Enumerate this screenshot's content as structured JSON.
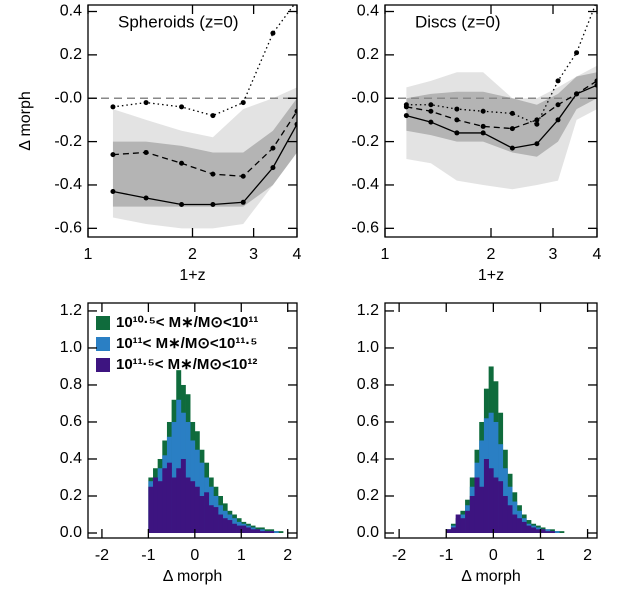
{
  "chart_data": [
    {
      "type": "line",
      "annotation": "Spheroids (z=0)",
      "xlabel": "1+z",
      "ylabel": "Δ morph",
      "xscale": "log",
      "xlim": [
        1,
        4
      ],
      "xticks": [
        1,
        2,
        3,
        4
      ],
      "ylim": [
        -0.64,
        0.43
      ],
      "yticks": [
        0.4,
        0.2,
        {
          "value": 0,
          "label": "-0.0"
        },
        -0.2,
        -0.4,
        -0.6
      ],
      "hline": 0,
      "x": [
        1.18,
        1.47,
        1.86,
        2.29,
        2.8,
        3.41,
        4.0
      ],
      "bands": [
        {
          "color": "#e3e3e3",
          "lower": [
            -0.55,
            -0.58,
            -0.6,
            -0.6,
            -0.58,
            -0.4,
            -0.2
          ],
          "upper": [
            -0.05,
            -0.1,
            -0.15,
            -0.18,
            -0.05,
            0.0,
            0.05
          ]
        },
        {
          "color": "#b4b4b4",
          "lower": [
            -0.5,
            -0.5,
            -0.5,
            -0.5,
            -0.5,
            -0.4,
            -0.25
          ],
          "upper": [
            -0.2,
            -0.2,
            -0.22,
            -0.25,
            -0.25,
            -0.15,
            0.0
          ]
        }
      ],
      "series": [
        {
          "color": "#000000",
          "linestyle": "solid",
          "values": [
            -0.43,
            -0.46,
            -0.49,
            -0.49,
            -0.48,
            -0.32,
            -0.12
          ]
        },
        {
          "color": "#000000",
          "linestyle": "dashed",
          "values": [
            -0.26,
            -0.25,
            -0.3,
            -0.35,
            -0.36,
            -0.23,
            -0.06
          ]
        },
        {
          "color": "#000000",
          "linestyle": "dotted",
          "values": [
            -0.04,
            -0.02,
            -0.04,
            -0.08,
            -0.02,
            0.3,
            0.45
          ]
        }
      ]
    },
    {
      "type": "line",
      "annotation": "Discs (z=0)",
      "xlabel": "1+z",
      "xscale": "log",
      "xlim": [
        1,
        4
      ],
      "xticks": [
        1,
        2,
        3,
        4
      ],
      "ylim": [
        -0.64,
        0.43
      ],
      "yticks": [
        0.4,
        0.2,
        {
          "value": 0,
          "label": "-0.0"
        },
        -0.2,
        -0.4,
        -0.6
      ],
      "hline": 0,
      "x": [
        1.15,
        1.35,
        1.6,
        1.9,
        2.3,
        2.7,
        3.1,
        3.5,
        4.0
      ],
      "bands": [
        {
          "color": "#e3e3e3",
          "lower": [
            -0.28,
            -0.3,
            -0.38,
            -0.4,
            -0.42,
            -0.4,
            -0.38,
            -0.1,
            -0.05
          ],
          "upper": [
            0.05,
            0.08,
            0.12,
            0.12,
            0.0,
            0.0,
            0.05,
            0.1,
            0.15
          ]
        },
        {
          "color": "#b4b4b4",
          "lower": [
            -0.15,
            -0.17,
            -0.2,
            -0.2,
            -0.25,
            -0.27,
            -0.2,
            -0.05,
            0.0
          ],
          "upper": [
            0.0,
            0.02,
            0.03,
            0.03,
            0.0,
            -0.03,
            0.02,
            0.1,
            0.12
          ]
        }
      ],
      "series": [
        {
          "color": "#000000",
          "linestyle": "solid",
          "values": [
            -0.08,
            -0.11,
            -0.16,
            -0.16,
            -0.23,
            -0.21,
            -0.1,
            0.02,
            0.06
          ]
        },
        {
          "color": "#000000",
          "linestyle": "dashed",
          "values": [
            -0.04,
            -0.06,
            -0.1,
            -0.13,
            -0.14,
            -0.1,
            -0.03,
            0.02,
            0.08
          ]
        },
        {
          "color": "#000000",
          "linestyle": "dotted",
          "values": [
            -0.03,
            -0.03,
            -0.05,
            -0.06,
            -0.07,
            -0.12,
            0.08,
            0.21,
            0.45
          ]
        }
      ]
    },
    {
      "type": "histogram",
      "xlabel": "Δ morph",
      "legend": "upper left",
      "xlim": [
        -2.3,
        2.2
      ],
      "xticks": [
        -2,
        -1,
        0,
        1,
        2
      ],
      "ylim": [
        -0.027,
        1.243
      ],
      "yticks": [
        {
          "value": 0,
          "label": "0.0"
        },
        0.2,
        0.4,
        0.6,
        0.8,
        {
          "value": 1,
          "label": "1.0"
        },
        1.2
      ],
      "bins": [
        -1.0,
        -0.9,
        -0.8,
        -0.7,
        -0.6,
        -0.5,
        -0.4,
        -0.3,
        -0.2,
        -0.1,
        0.0,
        0.1,
        0.2,
        0.3,
        0.4,
        0.5,
        0.6,
        0.7,
        0.8,
        0.9,
        1.0,
        1.1,
        1.2,
        1.3,
        1.4,
        1.5,
        1.6,
        1.7,
        1.8,
        1.9,
        2.0
      ],
      "series": [
        {
          "name": "10¹⁰·⁵< M∗/M⊙<10¹¹",
          "color": "#0f6b3c",
          "values": [
            0.3,
            0.35,
            0.4,
            0.5,
            0.6,
            0.72,
            0.88,
            0.8,
            0.75,
            0.6,
            0.55,
            0.45,
            0.38,
            0.3,
            0.25,
            0.2,
            0.16,
            0.12,
            0.1,
            0.08,
            0.06,
            0.05,
            0.04,
            0.03,
            0.03,
            0.02,
            0.02,
            0.01,
            0.01,
            0.0
          ]
        },
        {
          "name": "10¹¹< M∗/M⊙<10¹¹·⁵",
          "color": "#2a7fc4",
          "values": [
            0.28,
            0.3,
            0.35,
            0.42,
            0.52,
            0.6,
            0.72,
            0.65,
            0.6,
            0.5,
            0.45,
            0.38,
            0.3,
            0.25,
            0.2,
            0.15,
            0.12,
            0.1,
            0.08,
            0.06,
            0.05,
            0.04,
            0.03,
            0.02,
            0.02,
            0.01,
            0.01,
            0.01,
            0.0,
            0.0
          ]
        },
        {
          "name": "10¹¹·⁵< M∗/M⊙<10¹²",
          "color": "#3d1480",
          "values": [
            0.25,
            0.3,
            0.28,
            0.35,
            0.38,
            0.3,
            0.35,
            0.4,
            0.3,
            0.28,
            0.25,
            0.2,
            0.22,
            0.15,
            0.14,
            0.1,
            0.08,
            0.07,
            0.05,
            0.04,
            0.04,
            0.03,
            0.02,
            0.02,
            0.01,
            0.01,
            0.01,
            0.0,
            0.0,
            0.0
          ]
        }
      ]
    },
    {
      "type": "histogram",
      "xlabel": "Δ morph",
      "xlim": [
        -2.3,
        2.2
      ],
      "xticks": [
        -2,
        -1,
        0,
        1,
        2
      ],
      "ylim": [
        -0.027,
        1.243
      ],
      "yticks": [
        {
          "value": 0,
          "label": "0.0"
        },
        0.2,
        0.4,
        0.6,
        0.8,
        {
          "value": 1,
          "label": "1.0"
        },
        1.2
      ],
      "bins": [
        -1.0,
        -0.9,
        -0.8,
        -0.7,
        -0.6,
        -0.5,
        -0.4,
        -0.3,
        -0.2,
        -0.1,
        0.0,
        0.1,
        0.2,
        0.3,
        0.4,
        0.5,
        0.6,
        0.7,
        0.8,
        0.9,
        1.0,
        1.1,
        1.2,
        1.3,
        1.4,
        1.5,
        1.6,
        1.7,
        1.8,
        1.9,
        2.0
      ],
      "series": [
        {
          "color": "#0f6b3c",
          "values": [
            0.02,
            0.05,
            0.08,
            0.12,
            0.18,
            0.3,
            0.45,
            0.6,
            0.78,
            0.9,
            0.82,
            0.65,
            0.45,
            0.32,
            0.22,
            0.15,
            0.1,
            0.07,
            0.05,
            0.04,
            0.03,
            0.02,
            0.02,
            0.01,
            0.01,
            0.0,
            0.0,
            0.0,
            0.0,
            0.0
          ]
        },
        {
          "color": "#2a7fc4",
          "values": [
            0.02,
            0.04,
            0.07,
            0.1,
            0.15,
            0.25,
            0.38,
            0.5,
            0.62,
            0.65,
            0.6,
            0.48,
            0.35,
            0.25,
            0.17,
            0.12,
            0.08,
            0.05,
            0.04,
            0.03,
            0.02,
            0.02,
            0.01,
            0.01,
            0.0,
            0.0,
            0.0,
            0.0,
            0.0,
            0.0
          ]
        },
        {
          "color": "#3d1480",
          "values": [
            0.02,
            0.03,
            0.1,
            0.08,
            0.12,
            0.2,
            0.3,
            0.25,
            0.4,
            0.35,
            0.3,
            0.28,
            0.2,
            0.15,
            0.1,
            0.08,
            0.06,
            0.04,
            0.03,
            0.02,
            0.02,
            0.01,
            0.01,
            0.0,
            0.0,
            0.0,
            0.0,
            0.0,
            0.0,
            0.0
          ]
        }
      ]
    }
  ]
}
